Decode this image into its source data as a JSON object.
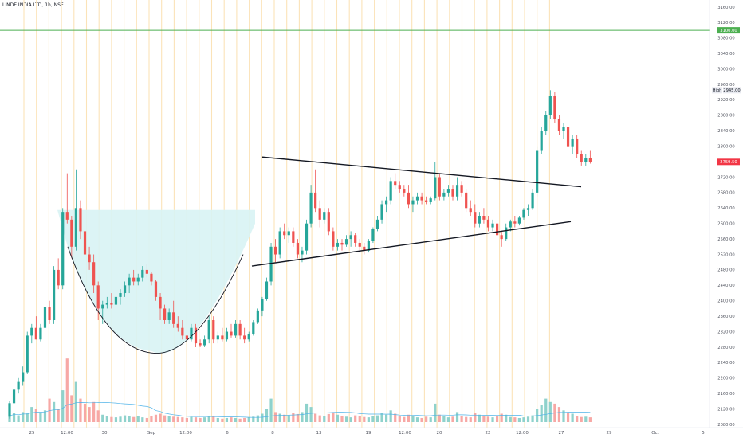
{
  "header": {
    "symbol": "LINDE INDIA LTD, 1h, NSE",
    "scale_mode": "pdf"
  },
  "colors": {
    "up": "#26a69a",
    "down": "#ef5350",
    "up_vol": "#8fd2cc",
    "down_vol": "#f7a8a5",
    "resistance": "#4caf50",
    "current_price": "#f23645",
    "session_line": "#fbe3b8",
    "cup_fill": "#d8f3f4",
    "ma_line": "#4fb3e8"
  },
  "chart_data": {
    "type": "candlestick",
    "title": "LINDE INDIA LTD, 1h, NSE",
    "x_tick_labels": [
      "25",
      "12:00",
      "30",
      "Sep",
      "12:00",
      "6",
      "8",
      "13",
      "19",
      "12:00",
      "20",
      "22",
      "12:00",
      "27",
      "29",
      "Oct",
      "5"
    ],
    "y_tick_labels": [
      "3160.00",
      "3120.00",
      "3080.00",
      "3040.00",
      "3000.00",
      "2960.00",
      "2920.00",
      "2880.00",
      "2840.00",
      "2800.00",
      "2760.00",
      "2720.00",
      "2680.00",
      "2640.00",
      "2600.00",
      "2560.00",
      "2520.00",
      "2480.00",
      "2440.00",
      "2400.00",
      "2360.00",
      "2320.00",
      "2280.00",
      "2240.00",
      "2200.00",
      "2160.00",
      "2120.00",
      "2080.00"
    ],
    "ylim": [
      2080,
      3160
    ],
    "price_labels": {
      "resistance": "3100.00",
      "high_tag": "High",
      "high": "2945.00",
      "current": "2759.50"
    },
    "levels": {
      "resistance": 3100,
      "high": 2945,
      "current": 2759.5
    },
    "candles": [
      [
        2100,
        2140,
        2095,
        2135
      ],
      [
        2135,
        2180,
        2130,
        2170
      ],
      [
        2170,
        2200,
        2160,
        2190
      ],
      [
        2190,
        2230,
        2180,
        2215
      ],
      [
        2215,
        2320,
        2210,
        2310
      ],
      [
        2310,
        2340,
        2290,
        2330
      ],
      [
        2330,
        2360,
        2300,
        2300
      ],
      [
        2300,
        2340,
        2295,
        2330
      ],
      [
        2330,
        2390,
        2320,
        2385
      ],
      [
        2385,
        2400,
        2340,
        2350
      ],
      [
        2350,
        2490,
        2340,
        2480
      ],
      [
        2480,
        2510,
        2430,
        2440
      ],
      [
        2440,
        2640,
        2430,
        2630
      ],
      [
        2630,
        2730,
        2600,
        2610
      ],
      [
        2610,
        2620,
        2510,
        2540
      ],
      [
        2540,
        2740,
        2530,
        2640
      ],
      [
        2640,
        2660,
        2560,
        2580
      ],
      [
        2580,
        2600,
        2500,
        2520
      ],
      [
        2520,
        2540,
        2480,
        2500
      ],
      [
        2500,
        2520,
        2420,
        2440
      ],
      [
        2440,
        2450,
        2350,
        2380
      ],
      [
        2380,
        2400,
        2340,
        2390
      ],
      [
        2390,
        2410,
        2380,
        2395
      ],
      [
        2395,
        2420,
        2380,
        2390
      ],
      [
        2390,
        2420,
        2385,
        2410
      ],
      [
        2410,
        2430,
        2390,
        2420
      ],
      [
        2420,
        2450,
        2410,
        2440
      ],
      [
        2440,
        2470,
        2420,
        2460
      ],
      [
        2460,
        2480,
        2440,
        2450
      ],
      [
        2450,
        2470,
        2440,
        2460
      ],
      [
        2460,
        2490,
        2450,
        2480
      ],
      [
        2480,
        2495,
        2460,
        2470
      ],
      [
        2470,
        2475,
        2440,
        2450
      ],
      [
        2450,
        2455,
        2400,
        2410
      ],
      [
        2410,
        2420,
        2350,
        2380
      ],
      [
        2380,
        2390,
        2340,
        2350
      ],
      [
        2350,
        2380,
        2340,
        2370
      ],
      [
        2370,
        2400,
        2330,
        2340
      ],
      [
        2340,
        2360,
        2320,
        2330
      ],
      [
        2330,
        2350,
        2300,
        2310
      ],
      [
        2310,
        2320,
        2290,
        2300
      ],
      [
        2300,
        2340,
        2295,
        2330
      ],
      [
        2330,
        2340,
        2280,
        2290
      ],
      [
        2290,
        2300,
        2280,
        2285
      ],
      [
        2285,
        2310,
        2280,
        2300
      ],
      [
        2300,
        2360,
        2290,
        2350
      ],
      [
        2350,
        2360,
        2290,
        2300
      ],
      [
        2300,
        2320,
        2290,
        2310
      ],
      [
        2310,
        2330,
        2295,
        2300
      ],
      [
        2300,
        2330,
        2295,
        2320
      ],
      [
        2320,
        2340,
        2305,
        2310
      ],
      [
        2310,
        2350,
        2305,
        2340
      ],
      [
        2340,
        2350,
        2300,
        2310
      ],
      [
        2310,
        2330,
        2290,
        2300
      ],
      [
        2300,
        2320,
        2295,
        2315
      ],
      [
        2315,
        2350,
        2310,
        2345
      ],
      [
        2345,
        2380,
        2340,
        2375
      ],
      [
        2375,
        2410,
        2360,
        2405
      ],
      [
        2405,
        2460,
        2400,
        2450
      ],
      [
        2450,
        2550,
        2440,
        2540
      ],
      [
        2540,
        2560,
        2500,
        2520
      ],
      [
        2520,
        2590,
        2510,
        2580
      ],
      [
        2580,
        2600,
        2560,
        2570
      ],
      [
        2570,
        2590,
        2550,
        2580
      ],
      [
        2580,
        2590,
        2540,
        2550
      ],
      [
        2550,
        2560,
        2510,
        2520
      ],
      [
        2520,
        2540,
        2500,
        2530
      ],
      [
        2530,
        2610,
        2520,
        2600
      ],
      [
        2600,
        2700,
        2590,
        2680
      ],
      [
        2680,
        2740,
        2630,
        2640
      ],
      [
        2640,
        2660,
        2590,
        2610
      ],
      [
        2610,
        2640,
        2600,
        2630
      ],
      [
        2630,
        2640,
        2570,
        2580
      ],
      [
        2580,
        2590,
        2530,
        2540
      ],
      [
        2540,
        2560,
        2530,
        2550
      ],
      [
        2550,
        2560,
        2530,
        2545
      ],
      [
        2545,
        2570,
        2540,
        2560
      ],
      [
        2560,
        2580,
        2540,
        2570
      ],
      [
        2570,
        2575,
        2540,
        2550
      ],
      [
        2550,
        2560,
        2530,
        2540
      ],
      [
        2540,
        2550,
        2520,
        2530
      ],
      [
        2530,
        2560,
        2525,
        2555
      ],
      [
        2555,
        2590,
        2550,
        2585
      ],
      [
        2585,
        2620,
        2580,
        2610
      ],
      [
        2610,
        2660,
        2600,
        2650
      ],
      [
        2650,
        2670,
        2630,
        2660
      ],
      [
        2660,
        2720,
        2650,
        2710
      ],
      [
        2710,
        2730,
        2690,
        2700
      ],
      [
        2700,
        2710,
        2680,
        2690
      ],
      [
        2690,
        2700,
        2670,
        2680
      ],
      [
        2680,
        2700,
        2640,
        2650
      ],
      [
        2650,
        2670,
        2630,
        2660
      ],
      [
        2660,
        2680,
        2650,
        2670
      ],
      [
        2670,
        2680,
        2650,
        2660
      ],
      [
        2660,
        2670,
        2650,
        2655
      ],
      [
        2655,
        2670,
        2650,
        2665
      ],
      [
        2665,
        2760,
        2660,
        2720
      ],
      [
        2720,
        2730,
        2660,
        2670
      ],
      [
        2670,
        2690,
        2660,
        2680
      ],
      [
        2680,
        2700,
        2670,
        2690
      ],
      [
        2690,
        2700,
        2660,
        2670
      ],
      [
        2670,
        2720,
        2660,
        2700
      ],
      [
        2700,
        2710,
        2670,
        2680
      ],
      [
        2680,
        2690,
        2630,
        2640
      ],
      [
        2640,
        2660,
        2620,
        2630
      ],
      [
        2630,
        2650,
        2590,
        2600
      ],
      [
        2600,
        2630,
        2590,
        2620
      ],
      [
        2620,
        2640,
        2600,
        2610
      ],
      [
        2610,
        2620,
        2580,
        2590
      ],
      [
        2590,
        2610,
        2580,
        2600
      ],
      [
        2600,
        2610,
        2560,
        2570
      ],
      [
        2570,
        2580,
        2540,
        2560
      ],
      [
        2560,
        2600,
        2555,
        2590
      ],
      [
        2590,
        2610,
        2580,
        2605
      ],
      [
        2605,
        2620,
        2590,
        2600
      ],
      [
        2600,
        2620,
        2595,
        2615
      ],
      [
        2615,
        2640,
        2610,
        2635
      ],
      [
        2635,
        2650,
        2620,
        2640
      ],
      [
        2640,
        2690,
        2635,
        2680
      ],
      [
        2680,
        2800,
        2670,
        2790
      ],
      [
        2790,
        2850,
        2780,
        2840
      ],
      [
        2840,
        2890,
        2830,
        2880
      ],
      [
        2880,
        2945,
        2870,
        2930
      ],
      [
        2930,
        2940,
        2860,
        2870
      ],
      [
        2870,
        2880,
        2830,
        2840
      ],
      [
        2840,
        2860,
        2820,
        2850
      ],
      [
        2850,
        2860,
        2790,
        2800
      ],
      [
        2800,
        2830,
        2780,
        2820
      ],
      [
        2820,
        2830,
        2770,
        2780
      ],
      [
        2780,
        2790,
        2750,
        2760
      ],
      [
        2760,
        2780,
        2750,
        2770
      ],
      [
        2770,
        2790,
        2755,
        2759.5
      ]
    ],
    "volume": [
      18,
      28,
      20,
      30,
      26,
      45,
      40,
      30,
      35,
      70,
      60,
      40,
      95,
      190,
      80,
      120,
      70,
      55,
      45,
      60,
      35,
      22,
      18,
      15,
      14,
      16,
      20,
      18,
      15,
      17,
      14,
      12,
      18,
      22,
      25,
      20,
      18,
      16,
      15,
      14,
      12,
      15,
      14,
      12,
      14,
      18,
      16,
      12,
      10,
      12,
      14,
      12,
      10,
      12,
      14,
      16,
      20,
      25,
      40,
      70,
      30,
      25,
      22,
      20,
      28,
      24,
      30,
      55,
      45,
      25,
      20,
      18,
      24,
      30,
      22,
      18,
      16,
      14,
      20,
      18,
      15,
      14,
      18,
      20,
      28,
      22,
      35,
      25,
      18,
      15,
      22,
      18,
      14,
      12,
      16,
      14,
      55,
      22,
      18,
      14,
      16,
      30,
      18,
      15,
      14,
      28,
      22,
      20,
      16,
      14,
      18,
      25,
      22,
      15,
      14,
      12,
      14,
      16,
      20,
      40,
      50,
      70,
      60,
      55,
      45,
      35,
      30,
      25,
      18,
      15,
      16,
      14
    ]
  }
}
